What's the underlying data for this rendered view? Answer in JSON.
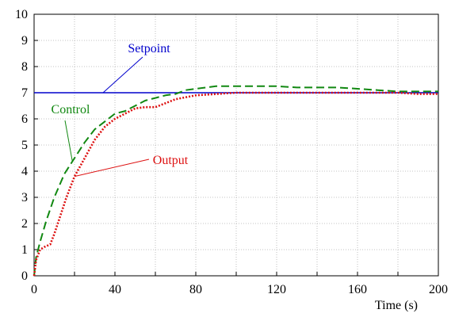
{
  "chart_data": {
    "type": "line",
    "title": "",
    "xlabel": "Time (s)",
    "ylabel": "",
    "xlim": [
      0,
      200
    ],
    "ylim": [
      0,
      10
    ],
    "x_ticks": [
      "0",
      "40",
      "80",
      "120",
      "160",
      "200"
    ],
    "x_tick_values": [
      0,
      40,
      80,
      120,
      160,
      200
    ],
    "y_ticks": [
      "0",
      "1",
      "2",
      "3",
      "4",
      "5",
      "6",
      "7",
      "8",
      "9",
      "10"
    ],
    "y_tick_values": [
      0,
      1,
      2,
      3,
      4,
      5,
      6,
      7,
      8,
      9,
      10
    ],
    "grid": true,
    "legend": "none",
    "series": [
      {
        "name": "Setpoint",
        "color": "#0000cc",
        "style": "solid",
        "x": [
          0,
          200
        ],
        "y": [
          7,
          7
        ]
      },
      {
        "name": "Control",
        "color": "#118811",
        "style": "dashed",
        "x": [
          0,
          1,
          3,
          6,
          10,
          15,
          20,
          25,
          30,
          35,
          40,
          45,
          50,
          55,
          60,
          65,
          70,
          75,
          80,
          85,
          90,
          95,
          100,
          110,
          120,
          130,
          140,
          150,
          160,
          170,
          180,
          190,
          200
        ],
        "y": [
          0,
          0.7,
          1.3,
          2.1,
          3.0,
          3.9,
          4.5,
          5.1,
          5.6,
          5.9,
          6.2,
          6.3,
          6.5,
          6.7,
          6.8,
          6.9,
          6.95,
          7.1,
          7.15,
          7.2,
          7.25,
          7.25,
          7.25,
          7.25,
          7.25,
          7.2,
          7.2,
          7.2,
          7.15,
          7.1,
          7.05,
          7.05,
          7.05
        ]
      },
      {
        "name": "Output",
        "color": "#dd1111",
        "style": "dotted",
        "x": [
          0,
          1,
          3,
          5,
          8,
          10,
          13,
          16,
          20,
          25,
          30,
          35,
          40,
          45,
          50,
          55,
          60,
          65,
          70,
          80,
          90,
          100,
          110,
          120,
          130,
          140,
          150,
          160,
          170,
          180,
          190,
          200
        ],
        "y": [
          0,
          0.6,
          1.0,
          1.1,
          1.2,
          1.6,
          2.3,
          3.0,
          3.8,
          4.5,
          5.2,
          5.7,
          6.0,
          6.2,
          6.4,
          6.45,
          6.45,
          6.6,
          6.75,
          6.9,
          6.95,
          7.0,
          7.0,
          7.0,
          7.0,
          7.0,
          7.0,
          7.0,
          7.0,
          7.0,
          6.95,
          6.95
        ]
      }
    ],
    "annotations": [
      {
        "text": "Setpoint",
        "color": "#0000cc",
        "series": "Setpoint"
      },
      {
        "text": "Control",
        "color": "#118811",
        "series": "Control"
      },
      {
        "text": "Output",
        "color": "#dd1111",
        "series": "Output"
      }
    ]
  }
}
